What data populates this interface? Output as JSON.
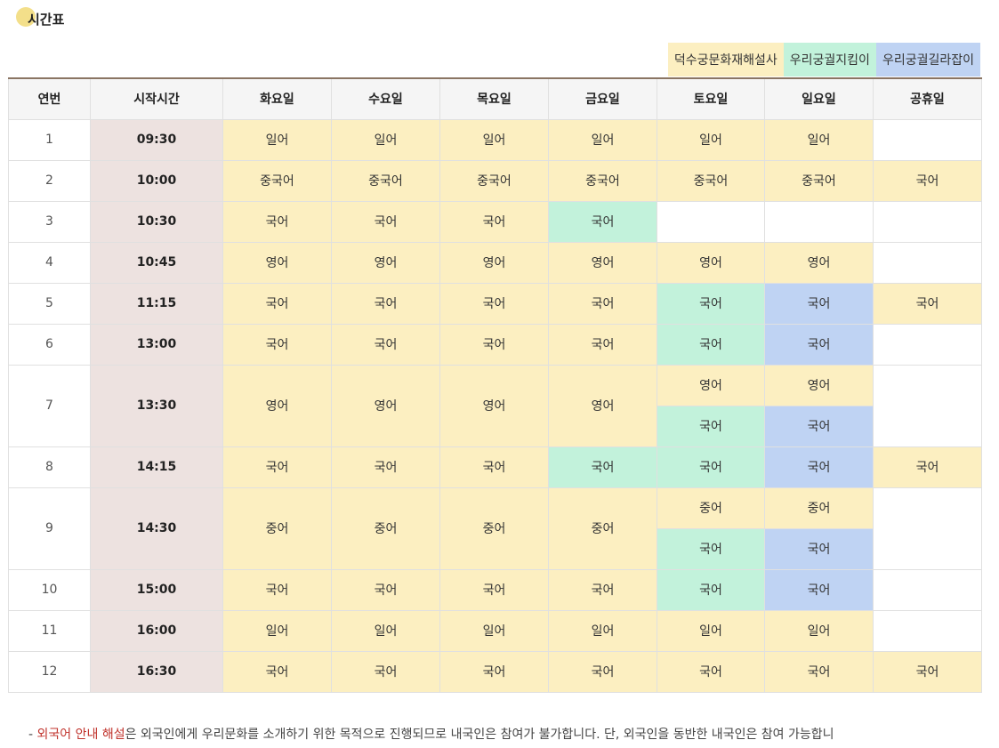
{
  "page": {
    "title": "시간표"
  },
  "legend": [
    {
      "label": "덕수궁문화재해설사",
      "color": "#fcefc1"
    },
    {
      "label": "우리궁궐지킴이",
      "color": "#c2f2db"
    },
    {
      "label": "우리궁궐길라잡이",
      "color": "#bfd3f3"
    }
  ],
  "table": {
    "headers": [
      "연번",
      "시작시간",
      "화요일",
      "수요일",
      "목요일",
      "금요일",
      "토요일",
      "일요일",
      "공휴일"
    ],
    "rows": [
      {
        "num": "1",
        "time": "09:30",
        "cells": [
          [
            {
              "t": "일어",
              "c": "a"
            }
          ],
          [
            {
              "t": "일어",
              "c": "a"
            }
          ],
          [
            {
              "t": "일어",
              "c": "a"
            }
          ],
          [
            {
              "t": "일어",
              "c": "a"
            }
          ],
          [
            {
              "t": "일어",
              "c": "a"
            }
          ],
          [
            {
              "t": "일어",
              "c": "a"
            }
          ],
          []
        ]
      },
      {
        "num": "2",
        "time": "10:00",
        "cells": [
          [
            {
              "t": "중국어",
              "c": "a"
            }
          ],
          [
            {
              "t": "중국어",
              "c": "a"
            }
          ],
          [
            {
              "t": "중국어",
              "c": "a"
            }
          ],
          [
            {
              "t": "중국어",
              "c": "a"
            }
          ],
          [
            {
              "t": "중국어",
              "c": "a"
            }
          ],
          [
            {
              "t": "중국어",
              "c": "a"
            }
          ],
          [
            {
              "t": "국어",
              "c": "a"
            }
          ]
        ]
      },
      {
        "num": "3",
        "time": "10:30",
        "cells": [
          [
            {
              "t": "국어",
              "c": "a"
            }
          ],
          [
            {
              "t": "국어",
              "c": "a"
            }
          ],
          [
            {
              "t": "국어",
              "c": "a"
            }
          ],
          [
            {
              "t": "국어",
              "c": "b"
            }
          ],
          [],
          [],
          []
        ]
      },
      {
        "num": "4",
        "time": "10:45",
        "cells": [
          [
            {
              "t": "영어",
              "c": "a"
            }
          ],
          [
            {
              "t": "영어",
              "c": "a"
            }
          ],
          [
            {
              "t": "영어",
              "c": "a"
            }
          ],
          [
            {
              "t": "영어",
              "c": "a"
            }
          ],
          [
            {
              "t": "영어",
              "c": "a"
            }
          ],
          [
            {
              "t": "영어",
              "c": "a"
            }
          ],
          []
        ]
      },
      {
        "num": "5",
        "time": "11:15",
        "cells": [
          [
            {
              "t": "국어",
              "c": "a"
            }
          ],
          [
            {
              "t": "국어",
              "c": "a"
            }
          ],
          [
            {
              "t": "국어",
              "c": "a"
            }
          ],
          [
            {
              "t": "국어",
              "c": "a"
            }
          ],
          [
            {
              "t": "국어",
              "c": "b"
            }
          ],
          [
            {
              "t": "국어",
              "c": "c"
            }
          ],
          [
            {
              "t": "국어",
              "c": "a"
            }
          ]
        ]
      },
      {
        "num": "6",
        "time": "13:00",
        "cells": [
          [
            {
              "t": "국어",
              "c": "a"
            }
          ],
          [
            {
              "t": "국어",
              "c": "a"
            }
          ],
          [
            {
              "t": "국어",
              "c": "a"
            }
          ],
          [
            {
              "t": "국어",
              "c": "a"
            }
          ],
          [
            {
              "t": "국어",
              "c": "b"
            }
          ],
          [
            {
              "t": "국어",
              "c": "c"
            }
          ],
          []
        ]
      },
      {
        "num": "7",
        "time": "13:30",
        "cells": [
          [
            {
              "t": "영어",
              "c": "a"
            }
          ],
          [
            {
              "t": "영어",
              "c": "a"
            }
          ],
          [
            {
              "t": "영어",
              "c": "a"
            }
          ],
          [
            {
              "t": "영어",
              "c": "a"
            }
          ],
          [
            {
              "t": "영어",
              "c": "a"
            },
            {
              "t": "국어",
              "c": "b"
            }
          ],
          [
            {
              "t": "영어",
              "c": "a"
            },
            {
              "t": "국어",
              "c": "c"
            }
          ],
          []
        ]
      },
      {
        "num": "8",
        "time": "14:15",
        "cells": [
          [
            {
              "t": "국어",
              "c": "a"
            }
          ],
          [
            {
              "t": "국어",
              "c": "a"
            }
          ],
          [
            {
              "t": "국어",
              "c": "a"
            }
          ],
          [
            {
              "t": "국어",
              "c": "b"
            }
          ],
          [
            {
              "t": "국어",
              "c": "b"
            }
          ],
          [
            {
              "t": "국어",
              "c": "c"
            }
          ],
          [
            {
              "t": "국어",
              "c": "a"
            }
          ]
        ]
      },
      {
        "num": "9",
        "time": "14:30",
        "cells": [
          [
            {
              "t": "중어",
              "c": "a"
            }
          ],
          [
            {
              "t": "중어",
              "c": "a"
            }
          ],
          [
            {
              "t": "중어",
              "c": "a"
            }
          ],
          [
            {
              "t": "중어",
              "c": "a"
            }
          ],
          [
            {
              "t": "중어",
              "c": "a"
            },
            {
              "t": "국어",
              "c": "b"
            }
          ],
          [
            {
              "t": "중어",
              "c": "a"
            },
            {
              "t": "국어",
              "c": "c"
            }
          ],
          []
        ]
      },
      {
        "num": "10",
        "time": "15:00",
        "cells": [
          [
            {
              "t": "국어",
              "c": "a"
            }
          ],
          [
            {
              "t": "국어",
              "c": "a"
            }
          ],
          [
            {
              "t": "국어",
              "c": "a"
            }
          ],
          [
            {
              "t": "국어",
              "c": "a"
            }
          ],
          [
            {
              "t": "국어",
              "c": "b"
            }
          ],
          [
            {
              "t": "국어",
              "c": "c"
            }
          ],
          []
        ]
      },
      {
        "num": "11",
        "time": "16:00",
        "cells": [
          [
            {
              "t": "일어",
              "c": "a"
            }
          ],
          [
            {
              "t": "일어",
              "c": "a"
            }
          ],
          [
            {
              "t": "일어",
              "c": "a"
            }
          ],
          [
            {
              "t": "일어",
              "c": "a"
            }
          ],
          [
            {
              "t": "일어",
              "c": "a"
            }
          ],
          [
            {
              "t": "일어",
              "c": "a"
            }
          ],
          []
        ]
      },
      {
        "num": "12",
        "time": "16:30",
        "cells": [
          [
            {
              "t": "국어",
              "c": "a"
            }
          ],
          [
            {
              "t": "국어",
              "c": "a"
            }
          ],
          [
            {
              "t": "국어",
              "c": "a"
            }
          ],
          [
            {
              "t": "국어",
              "c": "a"
            }
          ],
          [
            {
              "t": "국어",
              "c": "a"
            }
          ],
          [
            {
              "t": "국어",
              "c": "a"
            }
          ],
          [
            {
              "t": "국어",
              "c": "a"
            }
          ]
        ]
      }
    ]
  },
  "note": {
    "prefix": "- ",
    "highlight": "외국어 안내 해설",
    "text": "은 외국인에게 우리문화를 소개하기 위한 목적으로 진행되므로 내국인은 참여가 불가합니다. 단, 외국인을 동반한 내국인은 참여 가능합니"
  }
}
